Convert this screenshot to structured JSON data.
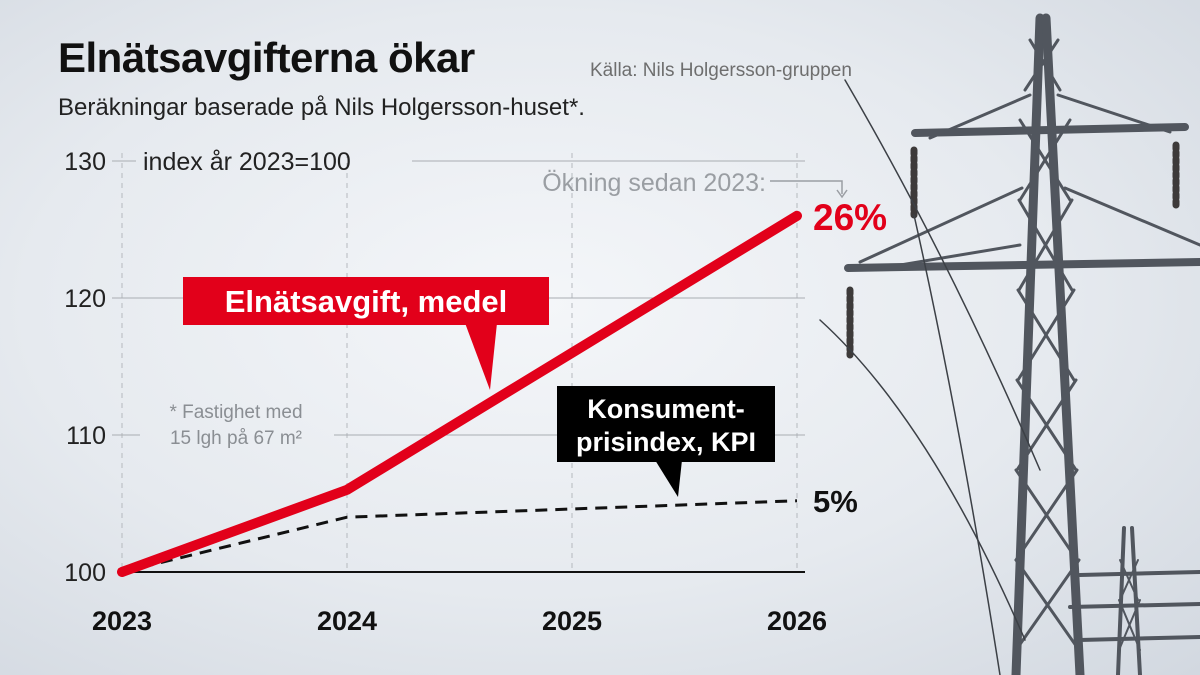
{
  "header": {
    "title": "Elnätsavgifterna ökar",
    "source": "Källa: Nils Holgersson-gruppen",
    "subtitle": "Beräkningar baserade på Nils Holgersson-huset*."
  },
  "chart_data": {
    "type": "line",
    "x": [
      "2023",
      "2024",
      "2025",
      "2026"
    ],
    "ylim": [
      100,
      130
    ],
    "yticks": [
      100,
      110,
      120,
      130
    ],
    "ylabel": "index år 2023=100",
    "series": [
      {
        "name": "Elnätsavgift, medel",
        "values": [
          100,
          106,
          116,
          126
        ],
        "color": "#e2001a",
        "style": "solid",
        "end_label": "26%"
      },
      {
        "name": "Konsument-prisindex, KPI",
        "values": [
          100,
          104,
          104.6,
          105.2
        ],
        "color": "#111111",
        "style": "dashed",
        "end_label": "5%"
      }
    ],
    "annotations": {
      "increase_label": "Ökning sedan 2023:",
      "footnote_line1": "* Fastighet med",
      "footnote_line2": "15 lgh på 67 m²",
      "kpi_label_line1": "Konsument-",
      "kpi_label_line2": "prisindex, KPI"
    },
    "grid": true,
    "legend": "inline labels"
  },
  "colors": {
    "accent": "#e2001a",
    "kpi": "#111111",
    "grid": "#a9adb2",
    "pylon": "#51565e"
  }
}
